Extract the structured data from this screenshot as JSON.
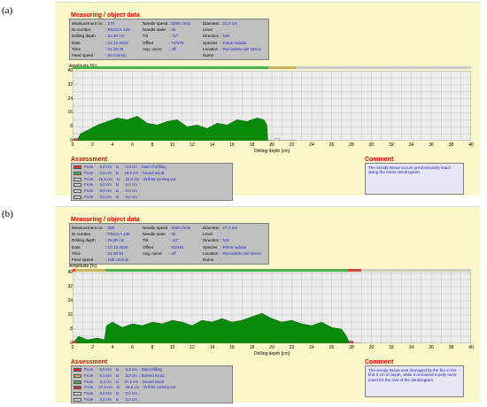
{
  "panels": [
    {
      "label": "(a)",
      "measuring_title": "Measuring / object data",
      "measuring": {
        "col1": [
          {
            "k": "Measurement no.",
            "v": ": 270"
          },
          {
            "k": "ID number",
            "v": ": RDCCA 126"
          },
          {
            "k": "Drilling depth",
            "v": ": 22,40 cm"
          },
          {
            "k": "Date",
            "v": ": 14.12.2020"
          },
          {
            "k": "Time",
            "v": ": 21:20:46"
          },
          {
            "k": "Feed speed",
            "v": ": 50 cm/min"
          }
        ],
        "col2": [
          {
            "k": "Needle speed",
            "v": ": 5000 r/min"
          },
          {
            "k": "Needle state",
            "v": ": ok"
          },
          {
            "k": "Tilt",
            "v": ": -57°"
          },
          {
            "k": "Offset",
            "v": ": 72/279"
          },
          {
            "k": "Avg. curve",
            "v": ": off"
          }
        ],
        "col3": [
          {
            "k": "Diameter",
            "v": ": 22,0 cm"
          },
          {
            "k": "Level",
            "v": ":"
          },
          {
            "k": "Direction",
            "v": ": N/S"
          },
          {
            "k": "Species",
            "v": ": Pinus radiata"
          },
          {
            "k": "Location",
            "v": ": Roccaforte del Greco"
          },
          {
            "k": "Name",
            "v": ":"
          }
        ]
      },
      "amplitude_title": "Amplitude [%]",
      "progress": [
        {
          "from": 0,
          "to": 19.6,
          "color": "#4caf50"
        },
        {
          "from": 19.6,
          "to": 22.4,
          "color": "#c8b060"
        }
      ],
      "chart_data": {
        "type": "area",
        "xlabel": "Drilling depth [cm]",
        "ylabel": "Amplitude [%]",
        "xlim": [
          0,
          40
        ],
        "ylim": [
          0,
          40
        ],
        "x_ticks": [
          0,
          2,
          4,
          6,
          8,
          10,
          12,
          14,
          16,
          18,
          20,
          22,
          24,
          26,
          28,
          30,
          32,
          34,
          36,
          38,
          40
        ],
        "y_ticks": [
          0,
          8,
          16,
          24,
          32,
          40
        ],
        "grid": true,
        "series": [
          {
            "color": "#0a8a0a",
            "x": [
              0,
              0.5,
              0.8,
              1.5,
              2.5,
              3.5,
              4.5,
              5.5,
              6.5,
              7.5,
              8.5,
              9.5,
              10.5,
              11.5,
              12.5,
              13.5,
              14.5,
              15.5,
              16.5,
              17.5,
              18.5,
              19.2,
              19.5,
              19.6,
              20.0,
              22.4
            ],
            "y": [
              0,
              1,
              4,
              6,
              9,
              11,
              13,
              12,
              14,
              10,
              9,
              11,
              12,
              8,
              9,
              7,
              10,
              9,
              12,
              11,
              13,
              12,
              9,
              0,
              0,
              0
            ]
          }
        ]
      },
      "markers": [
        {
          "x": 0.3,
          "color": "#e04040"
        },
        {
          "x": 20.5,
          "color": "#e0e0e0"
        }
      ],
      "assessment_title": "Assessment",
      "assessment": [
        {
          "color": "#e03030",
          "text": "From      0,0 cm    to      0,5 cm  : Start of drilling"
        },
        {
          "color": "#4caf50",
          "text": "From      0,5 cm    to     19,6 cm  : Sound wood"
        },
        {
          "color": "#d0d0d0",
          "text": "From     19,6 cm    to     22,0 cm  : Drill bit coming out"
        },
        {
          "color": "#d0d0d0",
          "text": "From      0,0 cm    to      0,0 cm  :"
        },
        {
          "color": "#d0d0d0",
          "text": "From      0,0 cm    to      0,0 cm  :"
        },
        {
          "color": "#d0d0d0",
          "text": "From      0,0 cm    to      0,0 cm  :"
        }
      ],
      "comment_title": "Comment",
      "comment": "The woody tissue occurs predominantly intact along the entire dendrogram."
    },
    {
      "label": "(b)",
      "measuring_title": "Measuring / object data",
      "measuring": {
        "col1": [
          {
            "k": "Measurement no.",
            "v": ": 252"
          },
          {
            "k": "ID number",
            "v": ": RDCCA 126"
          },
          {
            "k": "Drilling depth",
            "v": ": 29,00 cm"
          },
          {
            "k": "Date",
            "v": ": 10.12.2020"
          },
          {
            "k": "Time",
            "v": ": 21:30:51"
          },
          {
            "k": "Feed speed",
            "v": ": 100 cm/min"
          }
        ],
        "col2": [
          {
            "k": "Needle speed",
            "v": ": 5000 r/min"
          },
          {
            "k": "Needle state",
            "v": ": ok"
          },
          {
            "k": "Tilt",
            "v": ": -10°"
          },
          {
            "k": "Offset",
            "v": ": 83/491"
          },
          {
            "k": "Avg. curve",
            "v": ": off"
          }
        ],
        "col3": [
          {
            "k": "Diameter",
            "v": ": 27,0 cm"
          },
          {
            "k": "Level",
            "v": ":"
          },
          {
            "k": "Direction",
            "v": ": N/S"
          },
          {
            "k": "Species",
            "v": ": Pinus radiata"
          },
          {
            "k": "Location",
            "v": ": Roccaforte del Greco"
          },
          {
            "k": "Name",
            "v": ":"
          }
        ]
      },
      "amplitude_title": "Amplitude [%]",
      "progress": [
        {
          "from": 0,
          "to": 0.3,
          "color": "#e04040"
        },
        {
          "from": 0.3,
          "to": 3.3,
          "color": "#c8b060"
        },
        {
          "from": 3.3,
          "to": 27.6,
          "color": "#4caf50"
        },
        {
          "from": 27.6,
          "to": 29.0,
          "color": "#e04040"
        }
      ],
      "chart_data": {
        "type": "area",
        "xlabel": "Drilling depth [cm]",
        "ylabel": "Amplitude [%]",
        "xlim": [
          0,
          40
        ],
        "ylim": [
          0,
          40
        ],
        "x_ticks": [
          0,
          2,
          4,
          6,
          8,
          10,
          12,
          14,
          16,
          18,
          20,
          22,
          24,
          26,
          28,
          30,
          32,
          34,
          36,
          38,
          40
        ],
        "y_ticks": [
          0,
          8,
          16,
          24,
          32,
          40
        ],
        "grid": true,
        "series": [
          {
            "color": "#0a8a0a",
            "x": [
              0,
              0.3,
              0.6,
              1.5,
              2.5,
              3.2,
              3.4,
              4,
              5,
              6,
              7,
              8,
              9,
              10,
              11,
              12,
              13,
              14,
              15,
              16,
              17,
              18,
              19,
              20,
              21,
              22,
              23,
              24,
              25,
              26,
              27,
              27.5,
              27.8,
              29
            ],
            "y": [
              0,
              2,
              4,
              2,
              3,
              2,
              10,
              12,
              9,
              11,
              10,
              12,
              11,
              13,
              12,
              10,
              13,
              12,
              14,
              12,
              13,
              15,
              17,
              14,
              12,
              13,
              11,
              10,
              12,
              9,
              8,
              4,
              0,
              0
            ]
          }
        ]
      },
      "markers": [
        {
          "x": 0.15,
          "color": "#e04040"
        },
        {
          "x": 27.9,
          "color": "#e04040"
        }
      ],
      "assessment_title": "Assessment",
      "assessment": [
        {
          "color": "#e03030",
          "text": "From      0,0 cm    to      0,3 cm  : Start drilling"
        },
        {
          "color": "#c8b060",
          "text": "From      0,3 cm    to      3,3 cm  : Burned wood"
        },
        {
          "color": "#4caf50",
          "text": "From      3,3 cm    to     27,6 cm  : Sound wood"
        },
        {
          "color": "#e03030",
          "text": "From     27,6 cm    to     29,0 cm  : Drill bit coming out"
        },
        {
          "color": "#d0d0d0",
          "text": "From      0,0 cm    to      0,0 cm  :"
        },
        {
          "color": "#d0d0d0",
          "text": "From      0,0 cm    to      0,0 cm  :"
        }
      ],
      "comment_title": "Comment",
      "comment": "The woody tissue was damaged by the fire in the first 3 cm of depth, while it remained mostly semi-intact for the rest of the dendrogram."
    }
  ]
}
